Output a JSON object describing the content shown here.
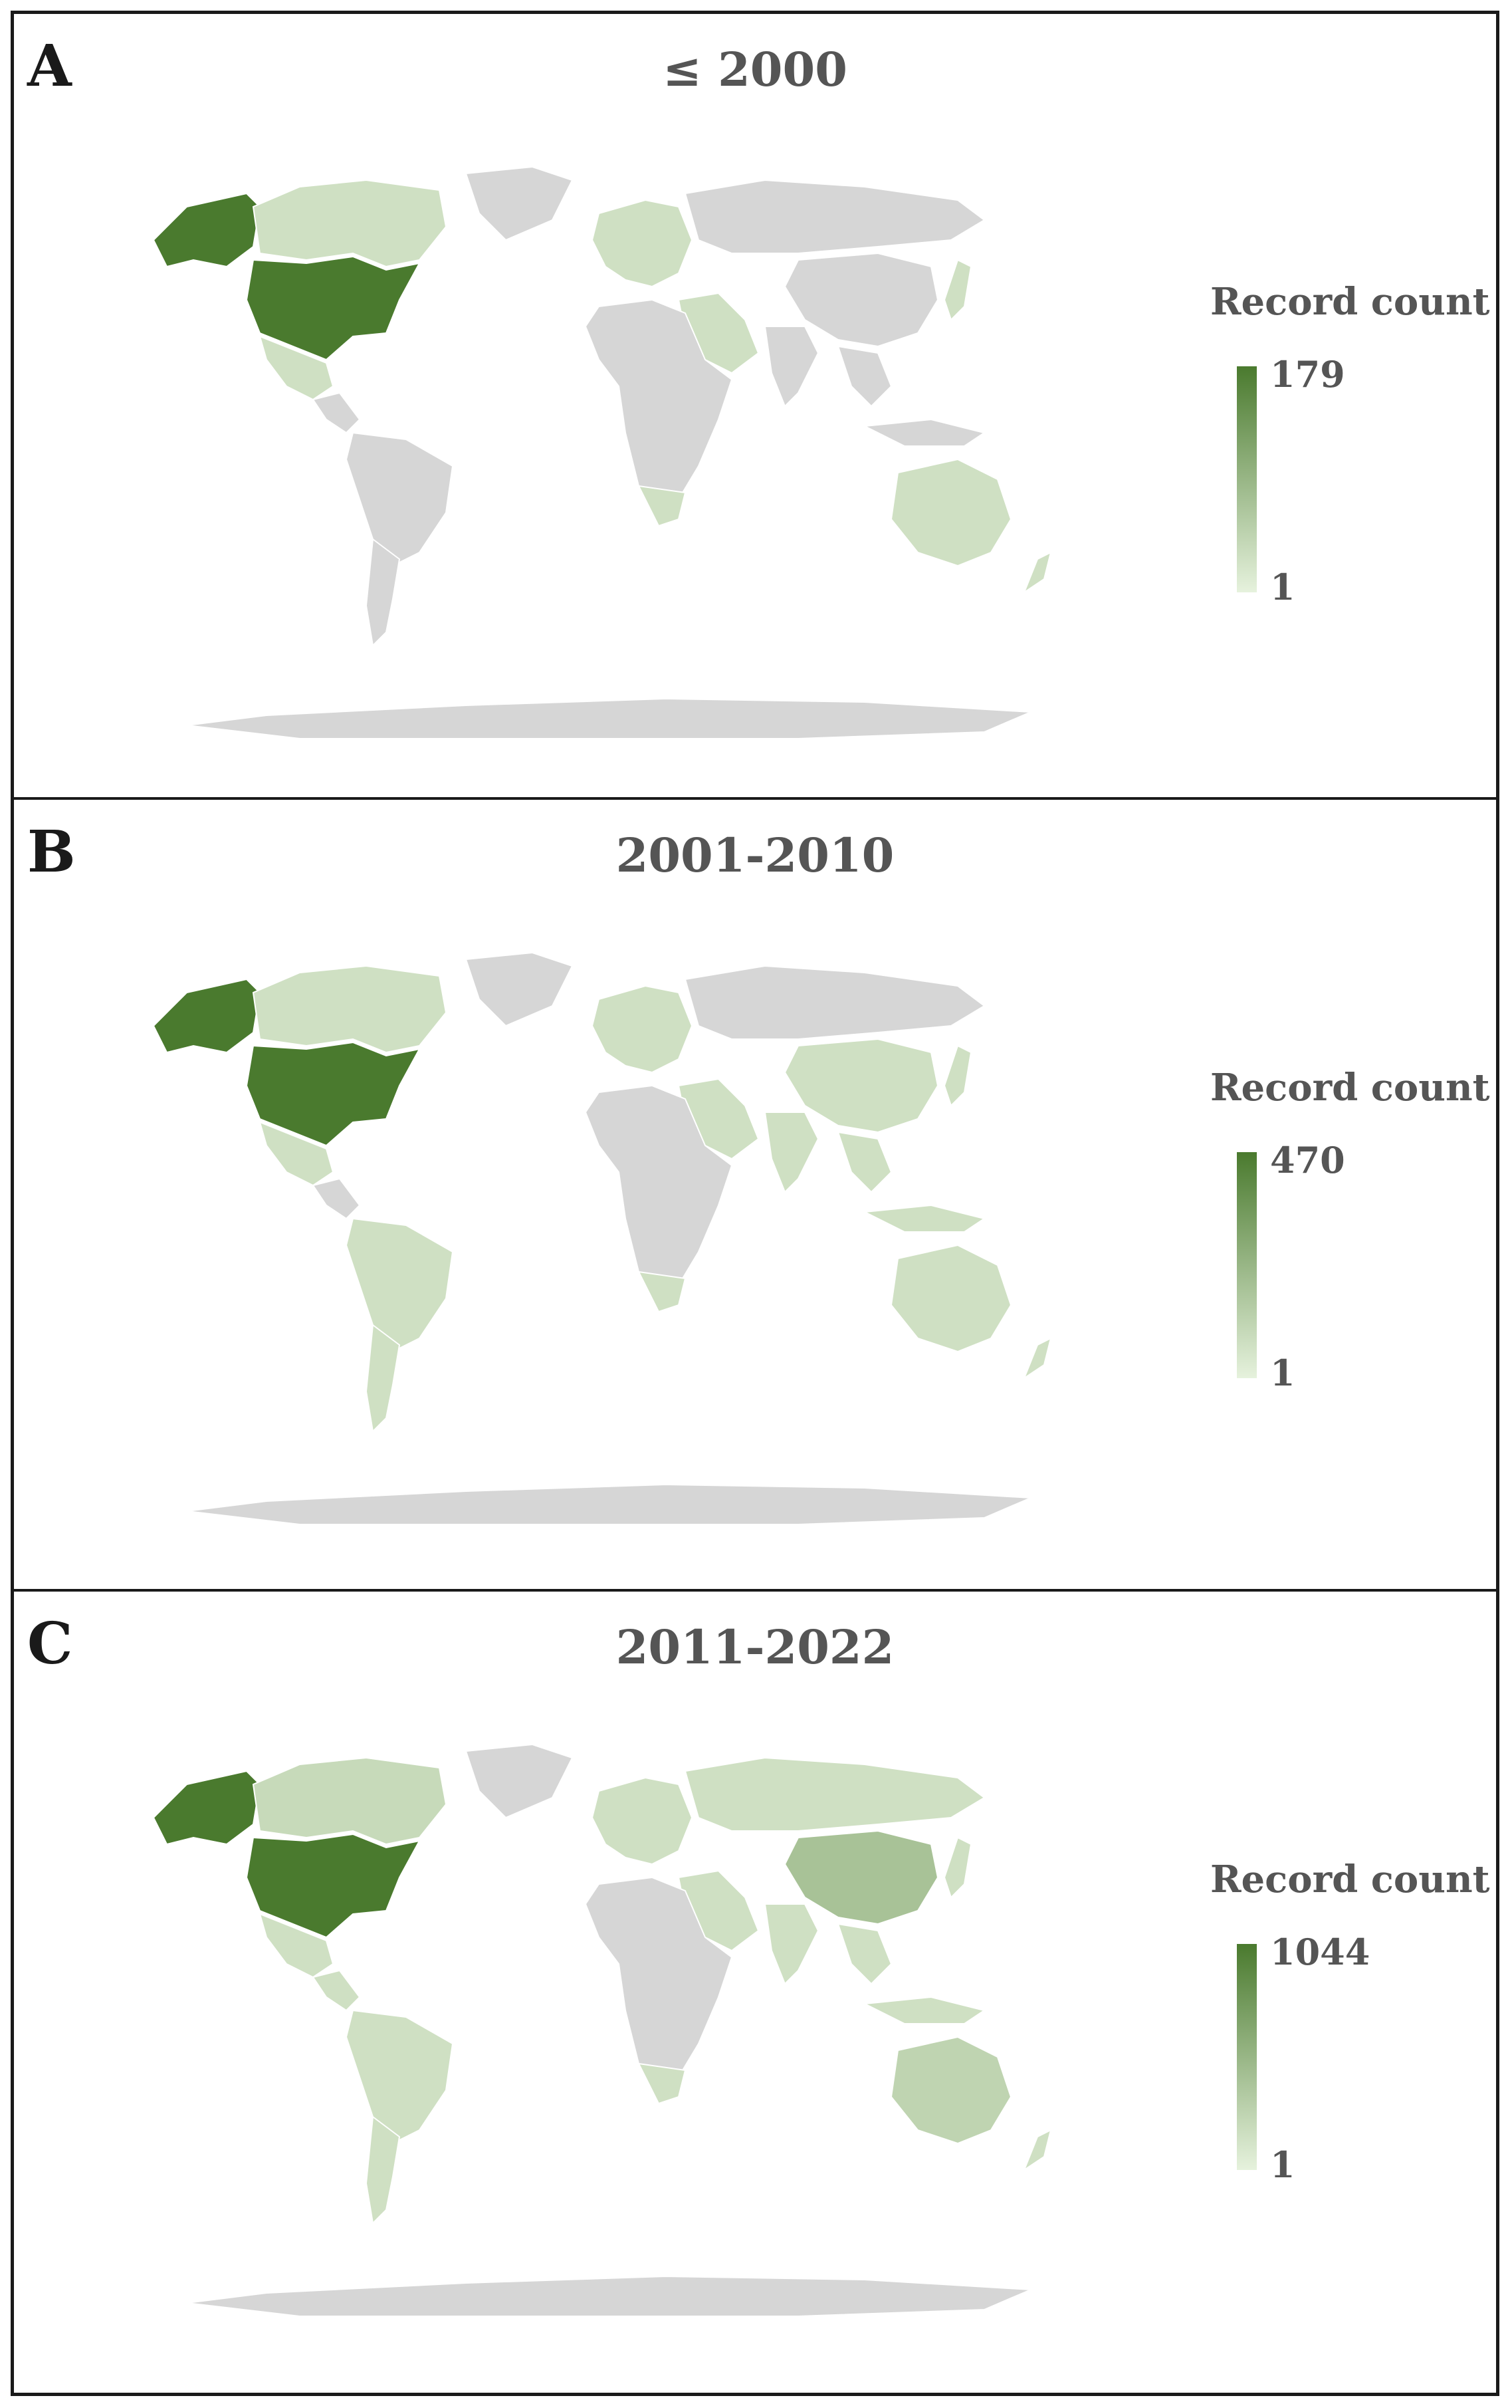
{
  "colors": {
    "no_data": "#d6d6d6",
    "low": "#e6f2dd",
    "high": "#4a7a2e",
    "border": "#1a1a1a"
  },
  "panels": [
    {
      "letter": "A",
      "title": "≤ 2000",
      "legend": {
        "title": "Record count",
        "min": "1",
        "max": "179"
      },
      "fills": {
        "usa": 1.0,
        "alaska": 1.0,
        "canada": 0.15,
        "mexico": 0.15,
        "centralamerica": 0.0,
        "southamerica": 0.0,
        "argentina": 0.0,
        "greenland": 0.0,
        "europe": 0.15,
        "russia": 0.0,
        "middleeast": 0.15,
        "africa": 0.0,
        "southafrica": 0.15,
        "india": 0.0,
        "china": 0.0,
        "japan": 0.15,
        "seasia": 0.0,
        "indonesia": 0.0,
        "australia": 0.15,
        "newzealand": 0.15,
        "antarctica": 0.0
      }
    },
    {
      "letter": "B",
      "title": "2001-2010",
      "legend": {
        "title": "Record count",
        "min": "1",
        "max": "470"
      },
      "fills": {
        "usa": 1.0,
        "alaska": 1.0,
        "canada": 0.15,
        "mexico": 0.15,
        "centralamerica": 0.0,
        "southamerica": 0.15,
        "argentina": 0.15,
        "greenland": 0.0,
        "europe": 0.15,
        "russia": 0.0,
        "middleeast": 0.15,
        "africa": 0.0,
        "southafrica": 0.15,
        "india": 0.15,
        "china": 0.15,
        "japan": 0.15,
        "seasia": 0.15,
        "indonesia": 0.15,
        "australia": 0.15,
        "newzealand": 0.15,
        "antarctica": 0.0
      }
    },
    {
      "letter": "C",
      "title": "2011-2022",
      "legend": {
        "title": "Record count",
        "min": "1",
        "max": "1044"
      },
      "fills": {
        "usa": 1.0,
        "alaska": 1.0,
        "canada": 0.2,
        "mexico": 0.15,
        "centralamerica": 0.15,
        "southamerica": 0.15,
        "argentina": 0.15,
        "greenland": 0.0,
        "europe": 0.15,
        "russia": 0.15,
        "middleeast": 0.15,
        "africa": 0.0,
        "southafrica": 0.15,
        "india": 0.15,
        "china": 0.4,
        "japan": 0.15,
        "seasia": 0.15,
        "indonesia": 0.15,
        "australia": 0.25,
        "newzealand": 0.15,
        "antarctica": 0.0
      }
    }
  ]
}
